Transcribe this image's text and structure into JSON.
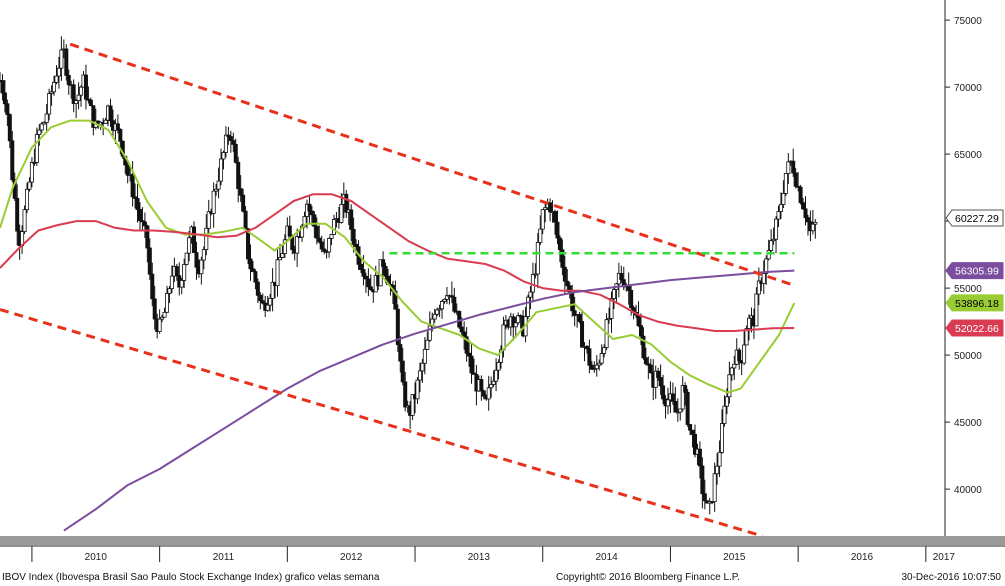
{
  "chart_data": {
    "type": "candlestick",
    "title": "",
    "ylim": [
      36500,
      76500
    ],
    "y_ticks": [
      40000,
      45000,
      50000,
      55000,
      60000,
      65000,
      70000,
      75000
    ],
    "x_ticks": [
      "2010",
      "2011",
      "2012",
      "2013",
      "2014",
      "2015",
      "2016",
      "2017"
    ],
    "x_start": 2009.75,
    "x_end": 2017.15,
    "grid": false,
    "price_anchors": [
      [
        2009.75,
        70500
      ],
      [
        2009.8,
        69000
      ],
      [
        2009.85,
        63000
      ],
      [
        2009.9,
        58500
      ],
      [
        2009.95,
        61000
      ],
      [
        2010.0,
        64000
      ],
      [
        2010.05,
        66500
      ],
      [
        2010.1,
        67500
      ],
      [
        2010.15,
        69500
      ],
      [
        2010.2,
        71500
      ],
      [
        2010.25,
        72500
      ],
      [
        2010.3,
        70000
      ],
      [
        2010.35,
        69000
      ],
      [
        2010.4,
        70500
      ],
      [
        2010.45,
        68500
      ],
      [
        2010.5,
        67000
      ],
      [
        2010.55,
        67500
      ],
      [
        2010.6,
        68500
      ],
      [
        2010.65,
        67000
      ],
      [
        2010.7,
        66000
      ],
      [
        2010.75,
        63500
      ],
      [
        2010.8,
        62000
      ],
      [
        2010.85,
        60000
      ],
      [
        2010.9,
        58500
      ],
      [
        2010.95,
        53000
      ],
      [
        2011.0,
        52000
      ],
      [
        2011.05,
        53500
      ],
      [
        2011.1,
        56500
      ],
      [
        2011.15,
        55000
      ],
      [
        2011.2,
        57500
      ],
      [
        2011.25,
        59000
      ],
      [
        2011.3,
        56500
      ],
      [
        2011.35,
        58000
      ],
      [
        2011.4,
        61000
      ],
      [
        2011.45,
        63000
      ],
      [
        2011.5,
        65000
      ],
      [
        2011.55,
        67000
      ],
      [
        2011.6,
        64000
      ],
      [
        2011.65,
        60500
      ],
      [
        2011.7,
        57000
      ],
      [
        2011.75,
        55500
      ],
      [
        2011.8,
        53500
      ],
      [
        2011.85,
        54500
      ],
      [
        2011.9,
        55500
      ],
      [
        2011.95,
        57500
      ],
      [
        2012.0,
        59000
      ],
      [
        2012.05,
        58000
      ],
      [
        2012.1,
        59500
      ],
      [
        2012.15,
        61500
      ],
      [
        2012.2,
        60000
      ],
      [
        2012.25,
        58500
      ],
      [
        2012.3,
        57000
      ],
      [
        2012.35,
        59500
      ],
      [
        2012.4,
        60500
      ],
      [
        2012.45,
        61500
      ],
      [
        2012.5,
        59500
      ],
      [
        2012.55,
        57500
      ],
      [
        2012.6,
        56500
      ],
      [
        2012.65,
        55000
      ],
      [
        2012.7,
        55500
      ],
      [
        2012.75,
        57000
      ],
      [
        2012.8,
        55500
      ],
      [
        2012.85,
        53000
      ],
      [
        2012.9,
        47500
      ],
      [
        2012.95,
        45500
      ],
      [
        2013.0,
        47000
      ],
      [
        2013.05,
        49000
      ],
      [
        2013.1,
        51000
      ],
      [
        2013.15,
        53500
      ],
      [
        2013.2,
        54000
      ],
      [
        2013.25,
        55000
      ],
      [
        2013.3,
        53500
      ],
      [
        2013.35,
        52000
      ],
      [
        2013.4,
        50500
      ],
      [
        2013.45,
        48500
      ],
      [
        2013.5,
        47500
      ],
      [
        2013.55,
        46000
      ],
      [
        2013.6,
        48000
      ],
      [
        2013.65,
        50000
      ],
      [
        2013.7,
        52000
      ],
      [
        2013.75,
        53000
      ],
      [
        2013.8,
        52500
      ],
      [
        2013.85,
        52000
      ],
      [
        2013.9,
        54500
      ],
      [
        2013.95,
        57000
      ],
      [
        2014.0,
        60500
      ],
      [
        2014.05,
        61500
      ],
      [
        2014.1,
        59500
      ],
      [
        2014.15,
        57000
      ],
      [
        2014.2,
        55000
      ],
      [
        2014.25,
        53000
      ],
      [
        2014.3,
        51500
      ],
      [
        2014.35,
        50000
      ],
      [
        2014.4,
        48500
      ],
      [
        2014.45,
        50000
      ],
      [
        2014.5,
        52000
      ],
      [
        2014.55,
        54000
      ],
      [
        2014.6,
        56000
      ],
      [
        2014.65,
        55500
      ],
      [
        2014.7,
        54000
      ],
      [
        2014.75,
        52000
      ],
      [
        2014.8,
        50000
      ],
      [
        2014.85,
        48000
      ],
      [
        2014.9,
        48500
      ],
      [
        2014.95,
        47000
      ],
      [
        2015.0,
        46500
      ],
      [
        2015.05,
        45500
      ],
      [
        2015.1,
        47500
      ],
      [
        2015.15,
        44500
      ],
      [
        2015.2,
        43000
      ],
      [
        2015.25,
        40000
      ],
      [
        2015.3,
        38000
      ],
      [
        2015.35,
        41000
      ],
      [
        2015.4,
        44000
      ],
      [
        2015.45,
        48000
      ],
      [
        2015.5,
        50000
      ],
      [
        2015.55,
        49500
      ],
      [
        2015.6,
        52500
      ],
      [
        2015.65,
        52500
      ],
      [
        2015.7,
        55500
      ],
      [
        2015.75,
        57000
      ],
      [
        2015.8,
        58500
      ],
      [
        2015.85,
        60500
      ],
      [
        2015.9,
        63500
      ],
      [
        2015.95,
        64500
      ],
      [
        2016.0,
        62500
      ],
      [
        2016.05,
        61000
      ],
      [
        2016.1,
        59000
      ],
      [
        2016.15,
        60000
      ]
    ],
    "series": [
      {
        "color": "#99cc33",
        "last_label": "53896.18",
        "anchors": [
          [
            2009.75,
            59500
          ],
          [
            2009.85,
            62500
          ],
          [
            2010.0,
            65500
          ],
          [
            2010.15,
            67000
          ],
          [
            2010.3,
            67500
          ],
          [
            2010.45,
            67500
          ],
          [
            2010.6,
            66800
          ],
          [
            2010.75,
            64500
          ],
          [
            2010.9,
            61500
          ],
          [
            2011.05,
            59500
          ],
          [
            2011.2,
            59000
          ],
          [
            2011.35,
            59000
          ],
          [
            2011.5,
            59200
          ],
          [
            2011.65,
            59500
          ],
          [
            2011.8,
            58500
          ],
          [
            2011.9,
            57800
          ],
          [
            2012.0,
            58500
          ],
          [
            2012.15,
            59800
          ],
          [
            2012.3,
            59800
          ],
          [
            2012.45,
            58800
          ],
          [
            2012.6,
            57000
          ],
          [
            2012.75,
            55800
          ],
          [
            2012.9,
            54000
          ],
          [
            2013.05,
            52500
          ],
          [
            2013.2,
            52000
          ],
          [
            2013.35,
            51500
          ],
          [
            2013.5,
            50500
          ],
          [
            2013.65,
            50000
          ],
          [
            2013.8,
            51500
          ],
          [
            2013.95,
            53200
          ],
          [
            2014.1,
            53500
          ],
          [
            2014.25,
            53800
          ],
          [
            2014.4,
            52500
          ],
          [
            2014.55,
            51200
          ],
          [
            2014.7,
            51500
          ],
          [
            2014.85,
            50800
          ],
          [
            2015.0,
            49500
          ],
          [
            2015.15,
            48500
          ],
          [
            2015.3,
            47800
          ],
          [
            2015.45,
            47200
          ],
          [
            2015.55,
            47500
          ],
          [
            2015.7,
            49500
          ],
          [
            2015.85,
            51500
          ],
          [
            2015.97,
            53896
          ]
        ]
      },
      {
        "color": "#d93c52",
        "last_label": "52022.66",
        "anchors": [
          [
            2009.75,
            56500
          ],
          [
            2009.9,
            58000
          ],
          [
            2010.05,
            59300
          ],
          [
            2010.2,
            59700
          ],
          [
            2010.35,
            60000
          ],
          [
            2010.5,
            60000
          ],
          [
            2010.65,
            59500
          ],
          [
            2010.8,
            59300
          ],
          [
            2010.95,
            59300
          ],
          [
            2011.1,
            59200
          ],
          [
            2011.3,
            59000
          ],
          [
            2011.45,
            58800
          ],
          [
            2011.6,
            58900
          ],
          [
            2011.75,
            59500
          ],
          [
            2011.9,
            60500
          ],
          [
            2012.05,
            61500
          ],
          [
            2012.2,
            62000
          ],
          [
            2012.35,
            62000
          ],
          [
            2012.5,
            61500
          ],
          [
            2012.65,
            60500
          ],
          [
            2012.8,
            59500
          ],
          [
            2012.95,
            58500
          ],
          [
            2013.1,
            57800
          ],
          [
            2013.25,
            57200
          ],
          [
            2013.4,
            57000
          ],
          [
            2013.55,
            56800
          ],
          [
            2013.7,
            56300
          ],
          [
            2013.85,
            55500
          ],
          [
            2014.0,
            55000
          ],
          [
            2014.15,
            54800
          ],
          [
            2014.3,
            54800
          ],
          [
            2014.45,
            54500
          ],
          [
            2014.6,
            53800
          ],
          [
            2014.75,
            53000
          ],
          [
            2014.9,
            52500
          ],
          [
            2015.05,
            52200
          ],
          [
            2015.2,
            52000
          ],
          [
            2015.35,
            51800
          ],
          [
            2015.5,
            51800
          ],
          [
            2015.65,
            51900
          ],
          [
            2015.8,
            52000
          ],
          [
            2015.97,
            52022
          ]
        ]
      },
      {
        "color": "#7a4d9e",
        "last_label": "56305.99",
        "anchors": [
          [
            2010.25,
            36900
          ],
          [
            2010.5,
            38500
          ],
          [
            2010.75,
            40300
          ],
          [
            2011.0,
            41500
          ],
          [
            2011.25,
            43000
          ],
          [
            2011.5,
            44500
          ],
          [
            2011.75,
            46000
          ],
          [
            2012.0,
            47500
          ],
          [
            2012.25,
            48800
          ],
          [
            2012.5,
            49800
          ],
          [
            2012.75,
            50800
          ],
          [
            2013.0,
            51600
          ],
          [
            2013.25,
            52300
          ],
          [
            2013.5,
            53000
          ],
          [
            2013.75,
            53600
          ],
          [
            2014.0,
            54200
          ],
          [
            2014.25,
            54700
          ],
          [
            2014.5,
            55000
          ],
          [
            2014.75,
            55300
          ],
          [
            2015.0,
            55600
          ],
          [
            2015.25,
            55800
          ],
          [
            2015.5,
            56000
          ],
          [
            2015.75,
            56200
          ],
          [
            2015.97,
            56306
          ]
        ]
      }
    ],
    "channel_lines": [
      {
        "color": "#e8311a",
        "style": "dashed",
        "points": [
          [
            2010.3,
            73200
          ],
          [
            2015.97,
            55200
          ]
        ]
      },
      {
        "color": "#e8311a",
        "style": "dashed",
        "points": [
          [
            2009.75,
            53400
          ],
          [
            2015.72,
            36500
          ]
        ]
      }
    ],
    "horizontal_lines": [
      {
        "color": "#33dd33",
        "style": "dashed",
        "value": 57600,
        "x_from": 2012.8,
        "x_to": 2015.97
      }
    ],
    "price_labels": [
      {
        "value": "60227.29",
        "level": 60227,
        "bg": "#ffffff",
        "fg": "#000000",
        "border": "#555555"
      },
      {
        "value": "56305.99",
        "level": 56306,
        "bg": "#7a4d9e",
        "fg": "#ffffff",
        "border": "#7a4d9e"
      },
      {
        "value": "53896.18",
        "level": 53896,
        "bg": "#99cc33",
        "fg": "#000000",
        "border": "#99cc33"
      },
      {
        "value": "52022.66",
        "level": 52023,
        "bg": "#d93c52",
        "fg": "#ffffff",
        "border": "#d93c52"
      }
    ]
  },
  "footer": {
    "left": "IBOV Index (Ibovespa Brasil Sao Paulo Stock Exchange Index) grafico velas semana",
    "center": "Copyright© 2016 Bloomberg Finance L.P.",
    "right": "30-Dec-2016 10:07:50"
  }
}
